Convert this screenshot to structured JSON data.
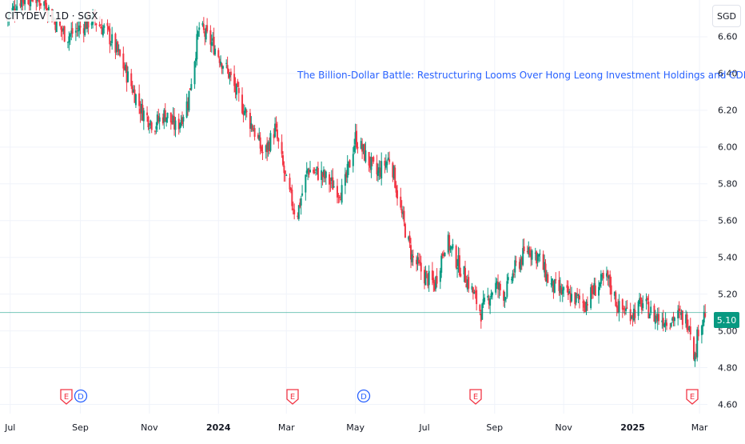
{
  "symbol": {
    "text": "CITYDEV · 1D · SGX"
  },
  "currency_button": "SGD",
  "headline": "The Billion-Dollar Battle: Restructuring Looms Over Hong Leong Investment Holdings and CDL",
  "last_price": "5.10",
  "colors": {
    "up": "#089981",
    "down": "#f23645",
    "headline": "#2962ff",
    "grid": "#f0f3fa",
    "earnings": "#f23645",
    "dividend": "#2962ff"
  },
  "event_markers": [
    {
      "type": "earnings",
      "label": "E",
      "date": "2023-08"
    },
    {
      "type": "dividend",
      "label": "D",
      "date": "2023-08"
    },
    {
      "type": "earnings",
      "label": "E",
      "date": "2024-02"
    },
    {
      "type": "dividend",
      "label": "D",
      "date": "2024-05"
    },
    {
      "type": "earnings",
      "label": "E",
      "date": "2024-08"
    },
    {
      "type": "earnings",
      "label": "E",
      "date": "2025-02"
    }
  ],
  "chart_data": {
    "type": "candlestick",
    "title": "",
    "xlabel": "",
    "ylabel": "",
    "ylim": [
      4.55,
      6.8
    ],
    "grid": true,
    "y_ticks": [
      "6.60",
      "6.40",
      "6.20",
      "6.00",
      "5.80",
      "5.60",
      "5.40",
      "5.20",
      "5.00",
      "4.80",
      "4.60"
    ],
    "x_ticks": [
      {
        "label": "Jul",
        "bold": false
      },
      {
        "label": "Sep",
        "bold": false
      },
      {
        "label": "Nov",
        "bold": false
      },
      {
        "label": "2024",
        "bold": true
      },
      {
        "label": "Mar",
        "bold": false
      },
      {
        "label": "May",
        "bold": false
      },
      {
        "label": "Jul",
        "bold": false
      },
      {
        "label": "Sep",
        "bold": false
      },
      {
        "label": "Nov",
        "bold": false
      },
      {
        "label": "2025",
        "bold": true
      },
      {
        "label": "Mar",
        "bold": false
      }
    ],
    "last_price": 5.1,
    "close_path": [
      [
        "2023-06-28",
        6.7
      ],
      [
        "2023-07-10",
        6.8
      ],
      [
        "2023-07-20",
        6.82
      ],
      [
        "2023-08-01",
        6.78
      ],
      [
        "2023-08-10",
        6.68
      ],
      [
        "2023-08-20",
        6.6
      ],
      [
        "2023-09-01",
        6.65
      ],
      [
        "2023-09-12",
        6.7
      ],
      [
        "2023-09-25",
        6.62
      ],
      [
        "2023-10-05",
        6.5
      ],
      [
        "2023-10-15",
        6.35
      ],
      [
        "2023-10-25",
        6.2
      ],
      [
        "2023-11-05",
        6.12
      ],
      [
        "2023-11-15",
        6.18
      ],
      [
        "2023-11-25",
        6.1
      ],
      [
        "2023-12-05",
        6.25
      ],
      [
        "2023-12-15",
        6.65
      ],
      [
        "2023-12-28",
        6.55
      ],
      [
        "2024-01-10",
        6.4
      ],
      [
        "2024-01-20",
        6.25
      ],
      [
        "2024-02-01",
        6.1
      ],
      [
        "2024-02-10",
        5.95
      ],
      [
        "2024-02-20",
        6.1
      ],
      [
        "2024-03-01",
        5.8
      ],
      [
        "2024-03-10",
        5.62
      ],
      [
        "2024-03-20",
        5.88
      ],
      [
        "2024-04-01",
        5.85
      ],
      [
        "2024-04-10",
        5.8
      ],
      [
        "2024-04-20",
        5.75
      ],
      [
        "2024-05-01",
        6.05
      ],
      [
        "2024-05-10",
        5.95
      ],
      [
        "2024-05-20",
        5.85
      ],
      [
        "2024-06-01",
        5.95
      ],
      [
        "2024-06-10",
        5.65
      ],
      [
        "2024-06-20",
        5.4
      ],
      [
        "2024-07-01",
        5.3
      ],
      [
        "2024-07-10",
        5.25
      ],
      [
        "2024-07-20",
        5.5
      ],
      [
        "2024-08-01",
        5.35
      ],
      [
        "2024-08-10",
        5.25
      ],
      [
        "2024-08-20",
        5.1
      ],
      [
        "2024-09-01",
        5.25
      ],
      [
        "2024-09-10",
        5.2
      ],
      [
        "2024-09-20",
        5.35
      ],
      [
        "2024-10-01",
        5.45
      ],
      [
        "2024-10-10",
        5.4
      ],
      [
        "2024-10-20",
        5.25
      ],
      [
        "2024-11-01",
        5.2
      ],
      [
        "2024-11-10",
        5.18
      ],
      [
        "2024-11-20",
        5.15
      ],
      [
        "2024-12-01",
        5.25
      ],
      [
        "2024-12-10",
        5.28
      ],
      [
        "2024-12-20",
        5.12
      ],
      [
        "2025-01-01",
        5.1
      ],
      [
        "2025-01-10",
        5.15
      ],
      [
        "2025-01-20",
        5.08
      ],
      [
        "2025-02-01",
        5.06
      ],
      [
        "2025-02-10",
        5.08
      ],
      [
        "2025-02-20",
        5.05
      ],
      [
        "2025-02-25",
        4.85
      ],
      [
        "2025-02-28",
        5.02
      ],
      [
        "2025-03-06",
        5.1
      ]
    ]
  }
}
